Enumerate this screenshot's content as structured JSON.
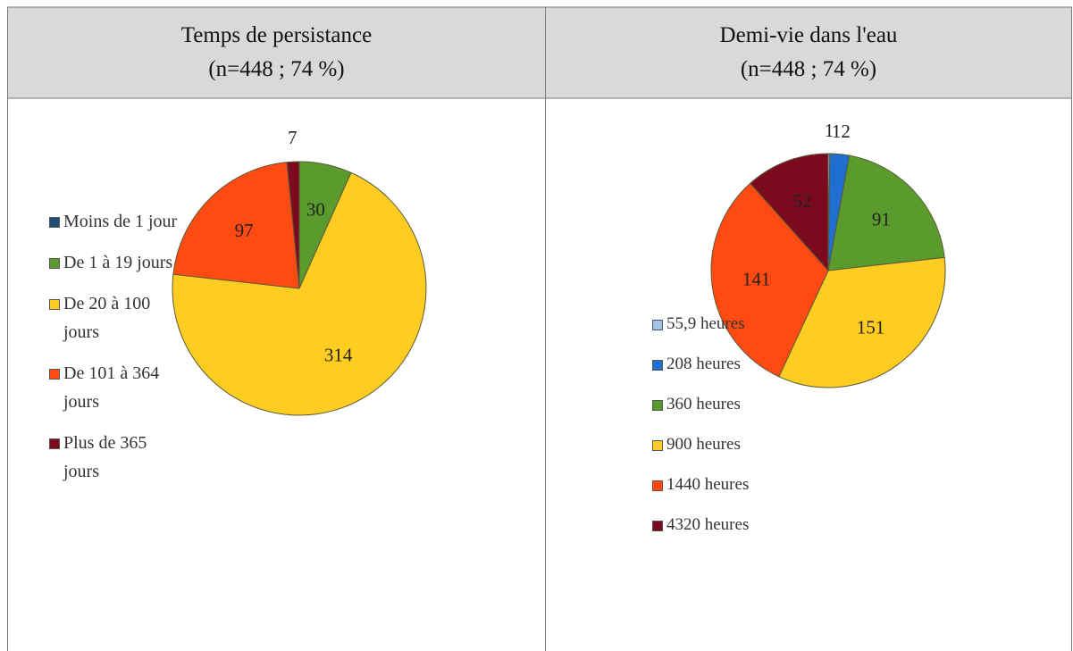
{
  "chart_data": [
    {
      "type": "pie",
      "title": "Temps de persistance",
      "subtitle": "(n=448 ; 74 %)",
      "categories": [
        "Moins de 1 jour",
        "De 1 à 19 jours",
        "De 20 à 100 jours",
        "De 101 à 364 jours",
        "Plus de 365 jours"
      ],
      "values": [
        0,
        30,
        314,
        97,
        7
      ],
      "colors": [
        "#1f4e79",
        "#5b9b2e",
        "#ffcc22",
        "#ff4a12",
        "#7b0a1e"
      ]
    },
    {
      "type": "pie",
      "title": "Demi-vie dans l'eau",
      "subtitle": "(n=448 ; 74 %)",
      "categories": [
        "55,9 heures",
        "208 heures",
        "360 heures",
        "900 heures",
        "1440 heures",
        "4320 heures"
      ],
      "values": [
        1,
        12,
        91,
        151,
        141,
        52
      ],
      "colors": [
        "#9dc3e6",
        "#1f6fd0",
        "#5b9b2e",
        "#ffcc22",
        "#ff4a12",
        "#7b0a1e"
      ]
    }
  ]
}
